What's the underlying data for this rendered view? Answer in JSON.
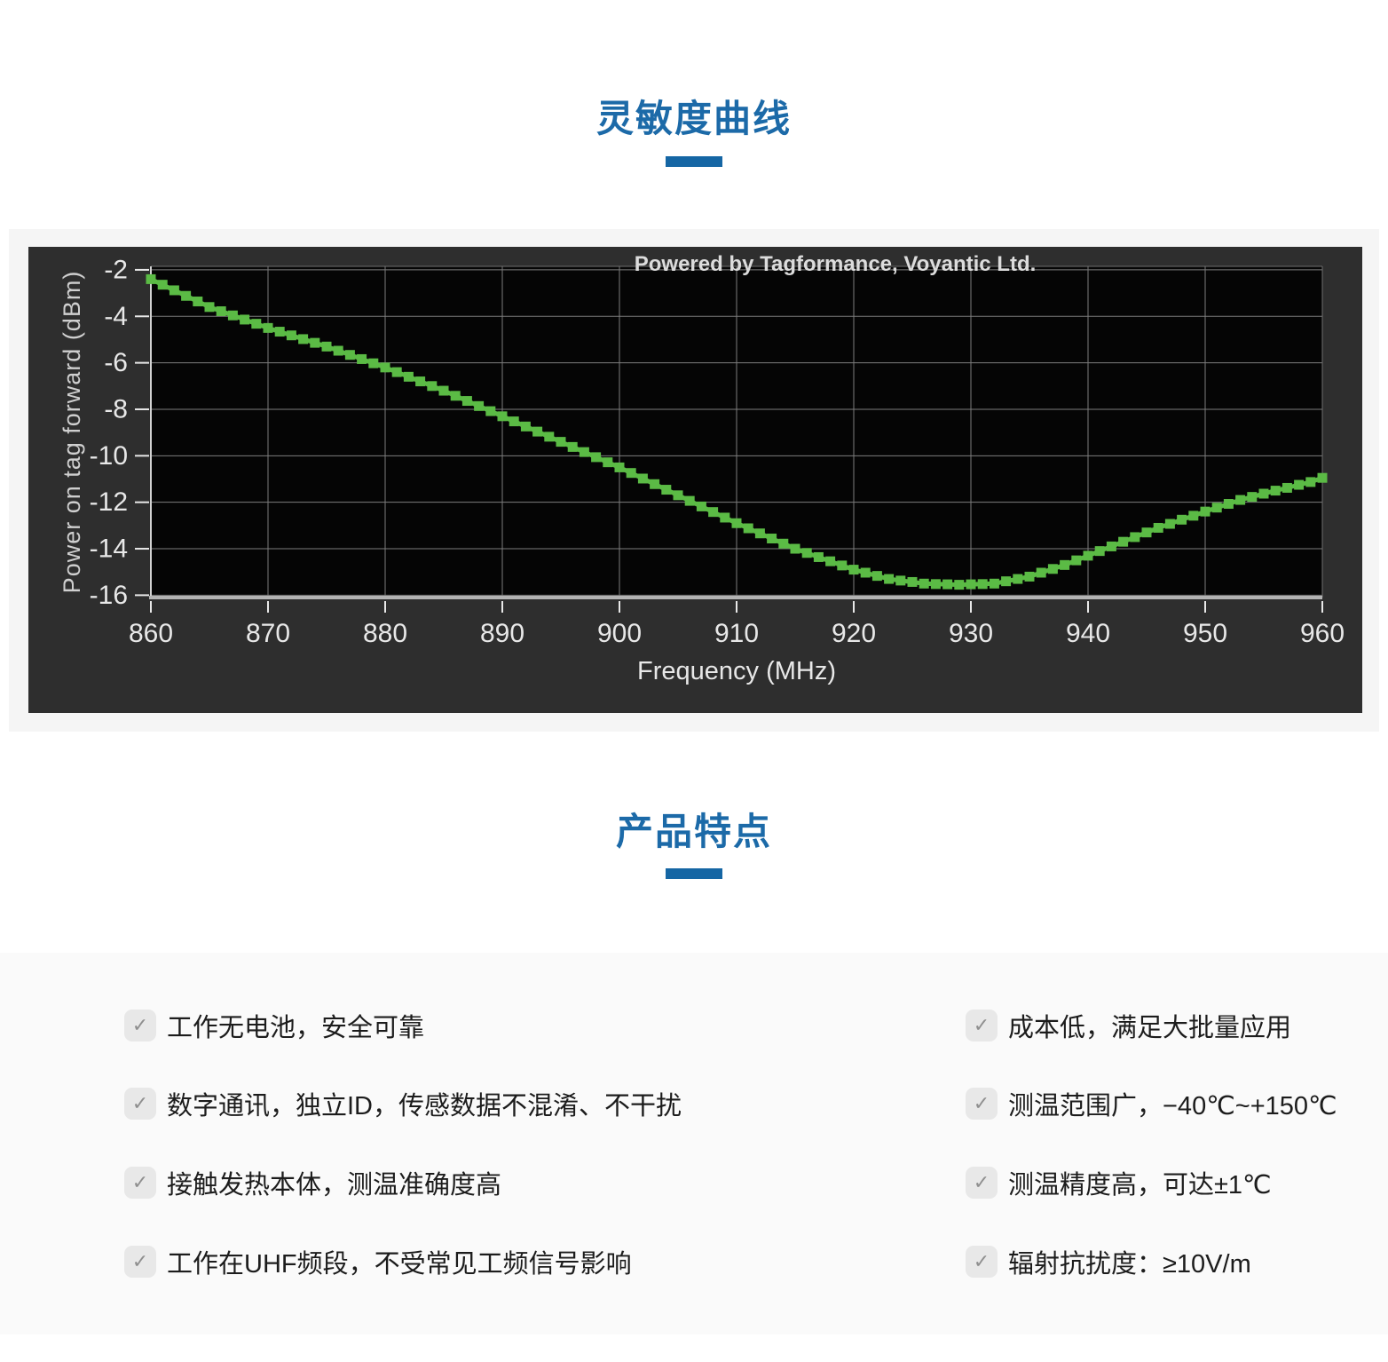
{
  "sections": {
    "sensitivity_title": "灵敏度曲线",
    "features_title": "产品特点",
    "accent_color": "#1566a4"
  },
  "chart_data": {
    "type": "line",
    "watermark": "Powered by Tagformance, Voyantic Ltd.",
    "xlabel": "Frequency (MHz)",
    "ylabel": "Power on tag forward (dBm)",
    "xlim": [
      860,
      960
    ],
    "ylim": [
      -16.1,
      -1.85
    ],
    "xticks": [
      860,
      870,
      880,
      890,
      900,
      910,
      920,
      930,
      940,
      950,
      960
    ],
    "yticks": [
      -2,
      -4,
      -6,
      -8,
      -10,
      -12,
      -14,
      -16
    ],
    "grid": true,
    "legend_position": "none",
    "colors": {
      "figure_bg": "#2e2e2e",
      "plot_bg": "#050505",
      "grid": "#7d7d7d",
      "axis": "#b3b3b3",
      "tick_text": "#e8e8e8",
      "series": "#5bbb45"
    },
    "series": [
      {
        "name": "Power on tag forward",
        "marker": "square",
        "color": "#5bbb45",
        "x": [
          860,
          861,
          862,
          863,
          864,
          865,
          866,
          867,
          868,
          869,
          870,
          871,
          872,
          873,
          874,
          875,
          876,
          877,
          878,
          879,
          880,
          881,
          882,
          883,
          884,
          885,
          886,
          887,
          888,
          889,
          890,
          891,
          892,
          893,
          894,
          895,
          896,
          897,
          898,
          899,
          900,
          901,
          902,
          903,
          904,
          905,
          906,
          907,
          908,
          909,
          910,
          911,
          912,
          913,
          914,
          915,
          916,
          917,
          918,
          919,
          920,
          921,
          922,
          923,
          924,
          925,
          926,
          927,
          928,
          929,
          930,
          931,
          932,
          933,
          934,
          935,
          936,
          937,
          938,
          939,
          940,
          941,
          942,
          943,
          944,
          945,
          946,
          947,
          948,
          949,
          950,
          951,
          952,
          953,
          954,
          955,
          956,
          957,
          958,
          959,
          960
        ],
        "values": [
          -2.4,
          -2.64,
          -2.88,
          -3.12,
          -3.36,
          -3.6,
          -3.78,
          -3.96,
          -4.14,
          -4.32,
          -4.5,
          -4.66,
          -4.82,
          -4.98,
          -5.14,
          -5.3,
          -5.48,
          -5.66,
          -5.84,
          -6.02,
          -6.2,
          -6.4,
          -6.6,
          -6.8,
          -7.0,
          -7.2,
          -7.42,
          -7.64,
          -7.86,
          -8.08,
          -8.3,
          -8.52,
          -8.74,
          -8.96,
          -9.18,
          -9.4,
          -9.62,
          -9.84,
          -10.06,
          -10.28,
          -10.5,
          -10.74,
          -10.98,
          -11.22,
          -11.46,
          -11.7,
          -11.94,
          -12.18,
          -12.42,
          -12.66,
          -12.9,
          -13.12,
          -13.34,
          -13.56,
          -13.78,
          -14.0,
          -14.18,
          -14.36,
          -14.54,
          -14.72,
          -14.9,
          -15.03,
          -15.17,
          -15.3,
          -15.37,
          -15.43,
          -15.5,
          -15.52,
          -15.53,
          -15.55,
          -15.53,
          -15.52,
          -15.5,
          -15.4,
          -15.3,
          -15.2,
          -15.03,
          -14.87,
          -14.7,
          -14.5,
          -14.3,
          -14.1,
          -13.9,
          -13.7,
          -13.5,
          -13.3,
          -13.1,
          -12.93,
          -12.75,
          -12.58,
          -12.4,
          -12.23,
          -12.07,
          -11.9,
          -11.77,
          -11.63,
          -11.5,
          -11.38,
          -11.25,
          -11.13,
          -10.95
        ]
      }
    ]
  },
  "features": {
    "check_icon": "✓",
    "items_left": [
      "工作无电池，安全可靠",
      "数字通讯，独立ID，传感数据不混淆、不干扰",
      "接触发热本体，测温准确度高",
      "工作在UHF频段，不受常见工频信号影响"
    ],
    "items_right": [
      "成本低，满足大批量应用",
      "测温范围广，−40℃~+150℃",
      "测温精度高，可达±1℃",
      "辐射抗扰度：≥10V/m"
    ]
  }
}
